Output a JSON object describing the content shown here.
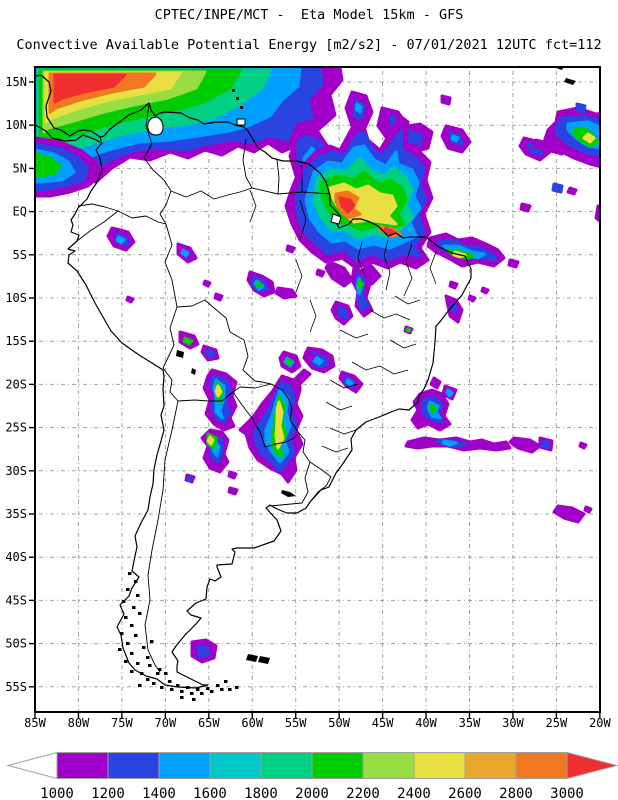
{
  "title": {
    "line1": "CPTEC/INPE/MCT -  Eta Model 15km - GFS",
    "line2": "Convective Available Potential Energy [m2/s2] - 07/01/2021 12UTC fct=112"
  },
  "map": {
    "lat_labels": [
      "15N",
      "10N",
      "5N",
      "EQ",
      "5S",
      "10S",
      "15S",
      "20S",
      "25S",
      "30S",
      "35S",
      "40S",
      "45S",
      "50S",
      "55S"
    ],
    "lon_labels": [
      "85W",
      "80W",
      "75W",
      "70W",
      "65W",
      "60W",
      "55W",
      "50W",
      "45W",
      "40W",
      "35W",
      "30W",
      "25W",
      "20W"
    ],
    "grid_color": "#9e9e9e",
    "coastline_color": "#000000"
  },
  "colorbar": {
    "labels": [
      "1000",
      "1200",
      "1400",
      "1600",
      "1800",
      "2000",
      "2200",
      "2400",
      "2600",
      "2800",
      "3000"
    ],
    "colors": [
      "#a000c8",
      "#2a44e2",
      "#00a0ff",
      "#00c8c8",
      "#00d084",
      "#00cc00",
      "#99dd44",
      "#e8e040",
      "#e8a830",
      "#f07820"
    ],
    "below_min_color": "#ffffff",
    "above_max_color": "#f03030",
    "outline_color": "#a0a0a0"
  }
}
